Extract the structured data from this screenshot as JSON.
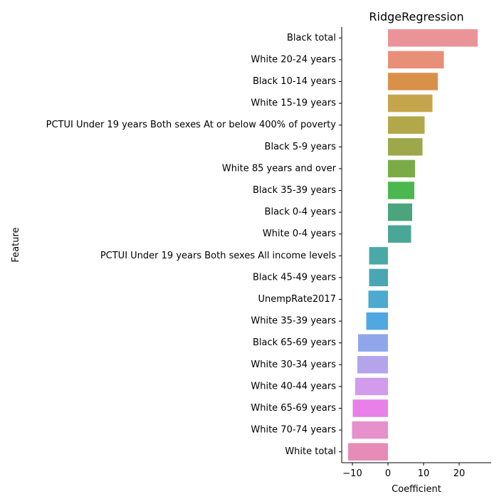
{
  "chart_data": {
    "type": "bar",
    "orientation": "horizontal",
    "title": "RidgeRegression",
    "xlabel": "Coefficient",
    "ylabel": "Feature",
    "xlim": [
      -13,
      29
    ],
    "xticks": [
      -10,
      0,
      10,
      20
    ],
    "grid": false,
    "legend": "none",
    "categories": [
      "Black total",
      "White 20-24 years",
      "Black 10-14 years",
      "White 15-19 years",
      "PCTUI Under 19 years Both sexes At or below 400% of poverty",
      "Black 5-9 years",
      "White 85 years and over",
      "Black 35-39 years",
      "Black 0-4 years",
      "White 0-4 years",
      "PCTUI Under 19 years Both sexes All income levels",
      "Black 45-49 years",
      "UnempRate2017",
      "White 35-39 years",
      "Black 65-69 years",
      "White 30-34 years",
      "White 40-44 years",
      "White 65-69 years",
      "White 70-74 years",
      "White total"
    ],
    "values": [
      25.2,
      15.7,
      14.0,
      12.5,
      10.3,
      9.7,
      7.6,
      7.4,
      6.8,
      6.5,
      -5.3,
      -5.3,
      -5.5,
      -6.1,
      -8.4,
      -8.6,
      -9.2,
      -9.9,
      -10.1,
      -11.2
    ],
    "colors": [
      "#ea9499",
      "#e88f78",
      "#d9914a",
      "#c5a54c",
      "#b3a849",
      "#9ca84a",
      "#7aab47",
      "#4bb74f",
      "#4aa57c",
      "#4aa696",
      "#49a9a6",
      "#4aa6b3",
      "#4baace",
      "#51a7e2",
      "#91a6ea",
      "#b4a4ec",
      "#d29bec",
      "#e97fe8",
      "#e690cc",
      "#e68cb7"
    ]
  }
}
